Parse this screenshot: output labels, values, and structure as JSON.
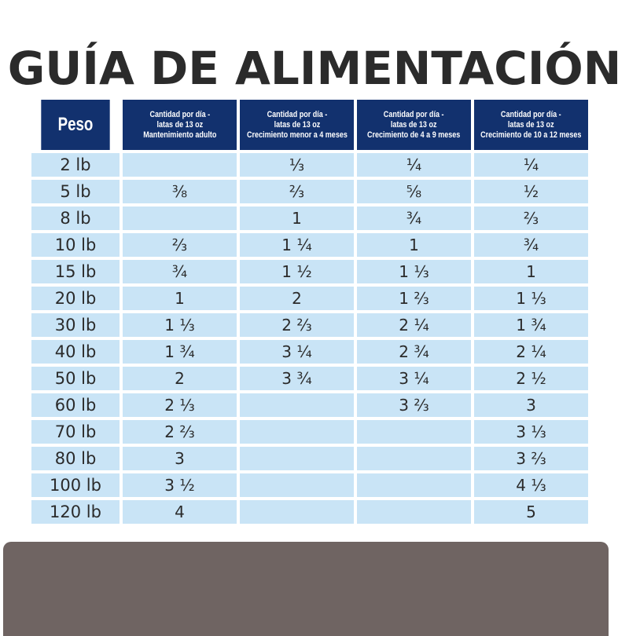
{
  "title": "GUÍA DE ALIMENTACIÓN",
  "headers": [
    {
      "lines": [
        "Peso"
      ]
    },
    {
      "lines": [
        "Cantidad por día -",
        "latas de 13 oz",
        "Mantenimiento adulto"
      ]
    },
    {
      "lines": [
        "Cantidad por día -",
        "latas de 13 oz",
        "Crecimiento menor a 4 meses"
      ]
    },
    {
      "lines": [
        "Cantidad por día -",
        "latas de 13 oz",
        "Crecimiento de 4 a 9 meses"
      ]
    },
    {
      "lines": [
        "Cantidad por día -",
        "latas de 13 oz",
        "Crecimiento de 10 a 12 meses"
      ]
    }
  ],
  "rows": [
    [
      "2 lb",
      "",
      "⅓",
      "¼",
      "¼"
    ],
    [
      "5 lb",
      "⅜",
      "⅔",
      "⅝",
      "½"
    ],
    [
      "8 lb",
      "",
      "1",
      "¾",
      "⅔"
    ],
    [
      "10 lb",
      "⅔",
      "1 ¼",
      "1",
      "¾"
    ],
    [
      "15 lb",
      "¾",
      "1 ½",
      "1 ⅓",
      "1"
    ],
    [
      "20 lb",
      "1",
      "2",
      "1 ⅔",
      "1 ⅓"
    ],
    [
      "30 lb",
      "1 ⅓",
      "2 ⅔",
      "2 ¼",
      "1 ¾"
    ],
    [
      "40 lb",
      "1 ¾",
      "3 ¼",
      "2 ¾",
      "2 ¼"
    ],
    [
      "50 lb",
      "2",
      "3 ¾",
      "3 ¼",
      "2 ½"
    ],
    [
      "60 lb",
      "2 ⅓",
      "",
      "3 ⅔",
      "3"
    ],
    [
      "70 lb",
      "2 ⅔",
      "",
      "",
      "3 ⅓"
    ],
    [
      "80 lb",
      "3",
      "",
      "",
      "3 ⅔"
    ],
    [
      "100 lb",
      "3 ½",
      "",
      "",
      "4 ⅓"
    ],
    [
      "120 lb",
      "4",
      "",
      "",
      "5"
    ]
  ]
}
